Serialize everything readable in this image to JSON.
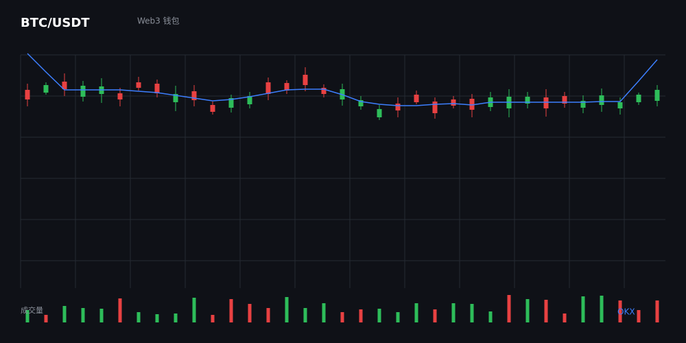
{
  "chart_data": {
    "type": "candlestick",
    "title": "BTC/USDT",
    "subtitle": "Web3 钱包",
    "volume_label": "成交量",
    "watermark": "OKX",
    "up_color": "#2ebd5a",
    "down_color": "#e84142",
    "line_color": "#3d7fff",
    "ylim": [
      0,
      340
    ],
    "open": [
      289,
      285,
      301,
      279,
      283,
      284,
      300,
      298,
      271,
      287,
      267,
      263,
      268,
      300,
      299,
      311,
      292,
      275,
      265,
      249,
      269,
      282,
      272,
      275,
      276,
      264,
      262,
      269,
      278,
      280,
      263,
      267,
      262,
      271,
      273
    ],
    "high": [
      298,
      300,
      313,
      302,
      306,
      292,
      308,
      304,
      295,
      296,
      272,
      282,
      286,
      307,
      303,
      322,
      297,
      298,
      280,
      267,
      278,
      288,
      278,
      280,
      283,
      286,
      290,
      286,
      290,
      286,
      281,
      291,
      278,
      285,
      296
    ],
    "low": [
      265,
      282,
      280,
      272,
      270,
      265,
      288,
      278,
      258,
      265,
      253,
      256,
      262,
      274,
      283,
      287,
      278,
      266,
      260,
      245,
      249,
      268,
      247,
      262,
      249,
      258,
      249,
      262,
      250,
      263,
      255,
      257,
      253,
      267,
      265
    ],
    "close": [
      275,
      296,
      290,
      295,
      294,
      275,
      292,
      284,
      283,
      274,
      257,
      277,
      280,
      283,
      288,
      296,
      283,
      290,
      274,
      261,
      259,
      271,
      255,
      266,
      260,
      278,
      279,
      279,
      262,
      269,
      273,
      281,
      271,
      282,
      289
    ],
    "ma": [
      342,
      315,
      289,
      289,
      289,
      289,
      287,
      285,
      281,
      277,
      273,
      275,
      279,
      284,
      289,
      290,
      290,
      282,
      272,
      268,
      266,
      266,
      268,
      269,
      267,
      271,
      271,
      271,
      271,
      271,
      271,
      272,
      272,
      302,
      333
    ],
    "volume": [
      18,
      11,
      24,
      21,
      20,
      35,
      15,
      12,
      13,
      36,
      11,
      34,
      27,
      21,
      37,
      21,
      28,
      15,
      19,
      20,
      15,
      28,
      19,
      28,
      27,
      16,
      40,
      34,
      33,
      13,
      38,
      39,
      32,
      18,
      32
    ],
    "volume_lim": [
      0,
      40
    ],
    "volume_colors": [
      "#2ebd5a",
      "#e84142",
      "#2ebd5a",
      "#2ebd5a",
      "#2ebd5a",
      "#e84142",
      "#2ebd5a",
      "#2ebd5a",
      "#2ebd5a",
      "#2ebd5a",
      "#e84142",
      "#e84142",
      "#e84142",
      "#e84142",
      "#2ebd5a",
      "#2ebd5a",
      "#2ebd5a",
      "#e84142",
      "#e84142",
      "#2ebd5a",
      "#2ebd5a",
      "#2ebd5a",
      "#e84142",
      "#2ebd5a",
      "#2ebd5a",
      "#2ebd5a",
      "#e84142",
      "#2ebd5a",
      "#e84142",
      "#e84142",
      "#2ebd5a",
      "#2ebd5a",
      "#e84142",
      "#e84142",
      "#e84142"
    ]
  }
}
